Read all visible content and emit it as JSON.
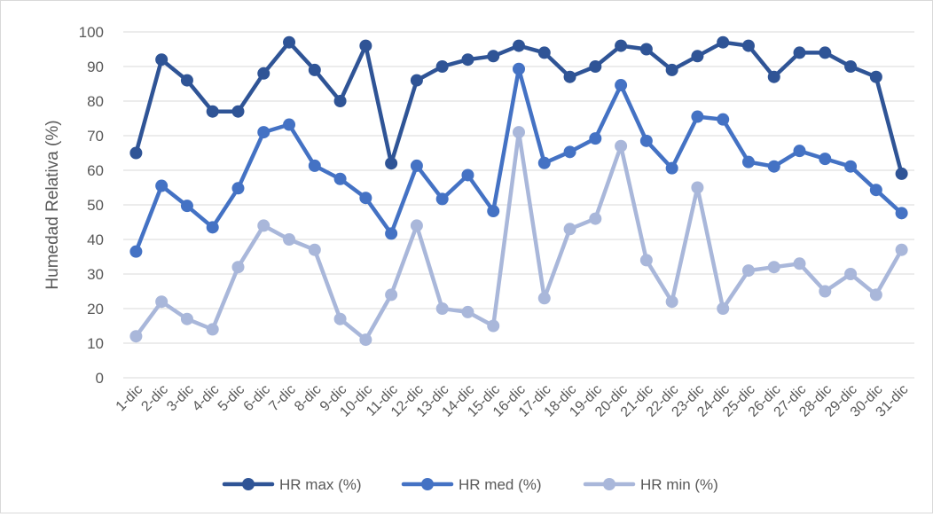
{
  "chart_data": {
    "type": "line",
    "title": "",
    "xlabel": "",
    "ylabel": "Humedad Relativa (%)",
    "ylim": [
      0,
      100
    ],
    "yticks": [
      0,
      10,
      20,
      30,
      40,
      50,
      60,
      70,
      80,
      90,
      100
    ],
    "grid": true,
    "legend_position": "bottom",
    "categories": [
      "1-dic",
      "2-dic",
      "3-dic",
      "4-dic",
      "5-dic",
      "6-dic",
      "7-dic",
      "8-dic",
      "9-dic",
      "10-dic",
      "11-dic",
      "12-dic",
      "13-dic",
      "14-dic",
      "15-dic",
      "16-dic",
      "17-dic",
      "18-dic",
      "19-dic",
      "20-dic",
      "21-dic",
      "22-dic",
      "23-dic",
      "24-dic",
      "25-dic",
      "26-dic",
      "27-dic",
      "28-dic",
      "29-dic",
      "30-dic",
      "31-dic"
    ],
    "series": [
      {
        "name": "HR max (%)",
        "color": "#2f5496",
        "values": [
          65,
          92,
          86,
          77,
          77,
          88,
          97,
          89,
          80,
          96,
          62,
          86,
          90,
          92,
          93,
          96,
          94,
          87,
          90,
          96,
          95,
          89,
          93,
          97,
          96,
          87,
          94,
          94,
          90,
          87,
          59
        ]
      },
      {
        "name": "HR med (%)",
        "color": "#4472c4",
        "values": [
          36.5,
          55.5,
          49.7,
          43.5,
          54.8,
          71,
          73.2,
          61.3,
          57.5,
          52,
          41.7,
          61.3,
          51.7,
          58.6,
          48.2,
          89.3,
          62.1,
          65.3,
          69.2,
          84.6,
          68.5,
          60.6,
          75.5,
          74.7,
          62.4,
          61.1,
          65.6,
          63.3,
          61.1,
          54.3,
          47.6
        ]
      },
      {
        "name": "HR min (%)",
        "color": "#a9b7da",
        "values": [
          12,
          22,
          17,
          14,
          32,
          44,
          40,
          37,
          17,
          11,
          24,
          44,
          20,
          19,
          15,
          71,
          23,
          43,
          46,
          67,
          34,
          22,
          55,
          20,
          31,
          32,
          33,
          25,
          30,
          24,
          37
        ]
      }
    ]
  }
}
